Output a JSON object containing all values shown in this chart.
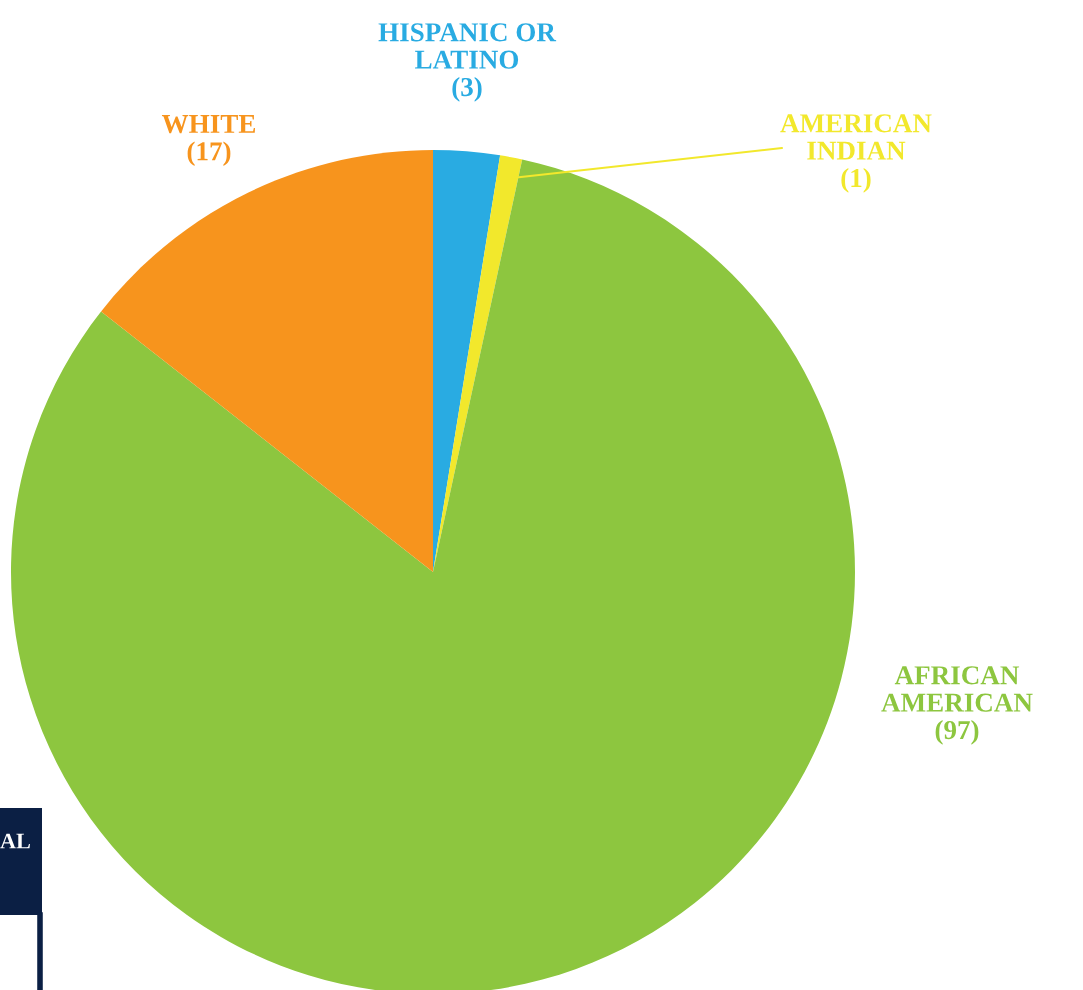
{
  "chart_data": {
    "type": "pie",
    "categories": [
      "HISPANIC OR\nLATINO",
      "AMERICAN\nINDIAN",
      "AFRICAN\nAMERICAN",
      "WHITE"
    ],
    "values": [
      3,
      1,
      97,
      17
    ],
    "value_labels": [
      "(3)",
      "(1)",
      "(97)",
      "(17)"
    ],
    "colors": [
      "#29abe2",
      "#f2e82c",
      "#8dc63f",
      "#f7941d"
    ],
    "annotations": [
      "AL"
    ]
  }
}
